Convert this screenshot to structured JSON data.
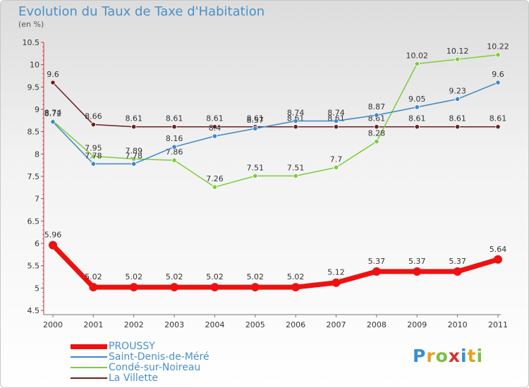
{
  "title": "Evolution du Taux de Taxe d'Habitation",
  "subtitle": "(en %)",
  "logo": {
    "text": "Proxiti",
    "letters": [
      "P",
      "r",
      "o",
      "x",
      "i",
      "t",
      "i"
    ],
    "colors": [
      "#3a8fd0",
      "#e8a020",
      "#78c040",
      "#d83030",
      "#3a8fd0",
      "#e8a020",
      "#78c040"
    ]
  },
  "chart_data": {
    "type": "line",
    "title": "Evolution du Taux de Taxe d'Habitation",
    "ylabel": "(en %)",
    "xlabel": "",
    "x": [
      "2000",
      "2001",
      "2002",
      "2003",
      "2004",
      "2005",
      "2006",
      "2007",
      "2008",
      "2009",
      "2010",
      "2011"
    ],
    "ylim": [
      4.5,
      10.5
    ],
    "yticks": [
      "4.5",
      "5",
      "5.5",
      "6",
      "6.5",
      "7",
      "7.5",
      "8",
      "8.5",
      "9",
      "9.5",
      "10",
      "10.5"
    ],
    "grid": false,
    "legend": "bottom-left",
    "series": [
      {
        "name": "PROUSSY",
        "color": "#ee1111",
        "values": [
          5.96,
          5.02,
          5.02,
          5.02,
          5.02,
          5.02,
          5.02,
          5.12,
          5.37,
          5.37,
          5.37,
          5.64
        ],
        "labels": [
          "5.96",
          "5.02",
          "5.02",
          "5.02",
          "5.02",
          "5.02",
          "5.02",
          "5.12",
          "5.37",
          "5.37",
          "5.37",
          "5.64"
        ]
      },
      {
        "name": "Saint-Denis-de-Méré",
        "color": "#3f87c6",
        "values": [
          8.72,
          7.78,
          7.78,
          8.16,
          8.4,
          8.57,
          8.74,
          8.74,
          8.87,
          9.05,
          9.23,
          9.6
        ],
        "labels": [
          "8.72",
          "7.78",
          "7.78",
          "8.16",
          "8.4",
          "8.57",
          "8.74",
          "8.74",
          "8.87",
          "9.05",
          "9.23",
          "9.6"
        ]
      },
      {
        "name": "Condé-sur-Noireau",
        "color": "#7ccc3c",
        "values": [
          8.74,
          7.95,
          7.89,
          7.86,
          7.26,
          7.51,
          7.51,
          7.7,
          8.28,
          10.02,
          10.12,
          10.22
        ],
        "labels": [
          "8.74",
          "7.95",
          "7.89",
          "7.86",
          "7.26",
          "7.51",
          "7.51",
          "7.7",
          "8.28",
          "10.02",
          "10.12",
          "10.22"
        ]
      },
      {
        "name": "La Villette",
        "color": "#6e1f1f",
        "values": [
          9.6,
          8.66,
          8.61,
          8.61,
          8.61,
          8.61,
          8.61,
          8.61,
          8.61,
          8.61,
          8.61,
          8.61
        ],
        "labels": [
          "9.6",
          "8.66",
          "8.61",
          "8.61",
          "8.61",
          "8.61",
          "8.61",
          "8.61",
          "8.61",
          "8.61",
          "8.61",
          "8.61"
        ]
      }
    ]
  }
}
